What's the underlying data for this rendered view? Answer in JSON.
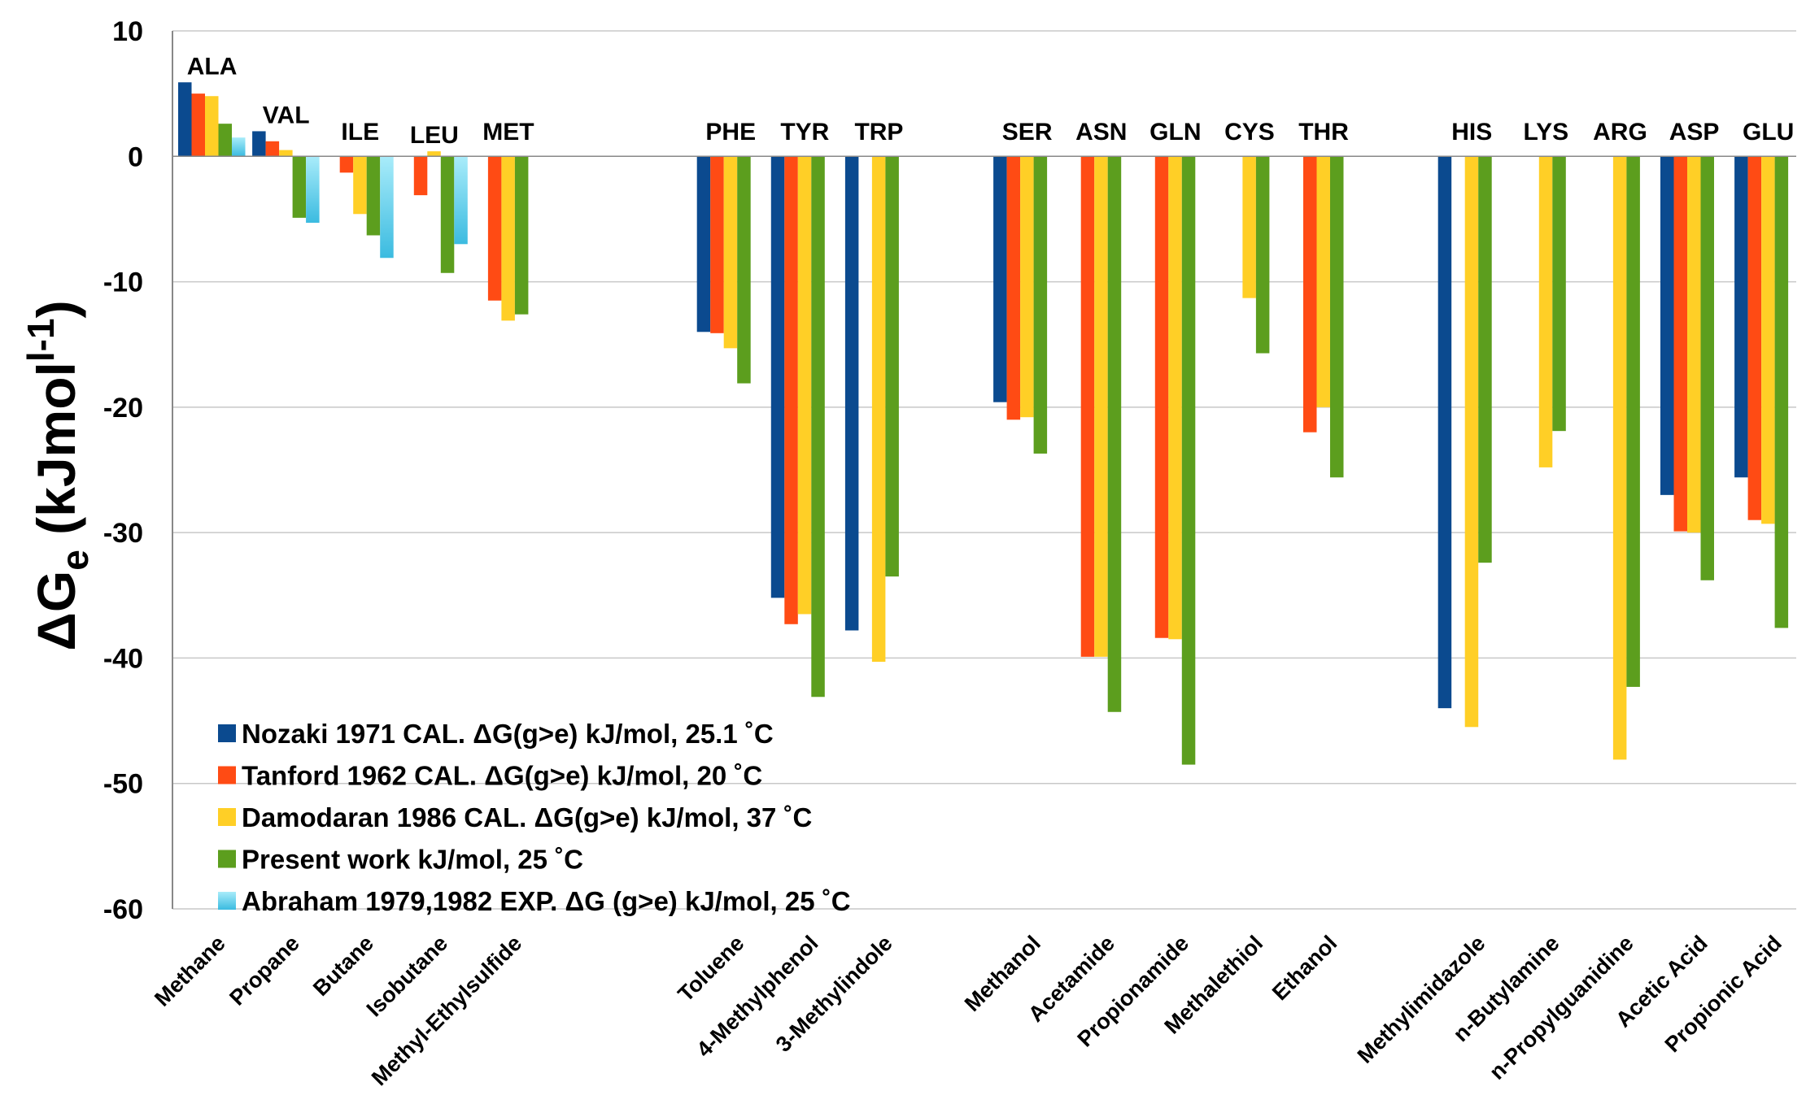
{
  "chart_data": {
    "type": "bar",
    "title": "",
    "xlabel": "",
    "ylabel": {
      "main": "ΔG",
      "subscript": "e",
      "unit_open": " (kJmol",
      "superscript": "l-1",
      "unit_close": ")"
    },
    "ylim": [
      -60,
      10
    ],
    "yticks": [
      10,
      0,
      -10,
      -20,
      -30,
      -40,
      -50,
      -60
    ],
    "grid": true,
    "legend_position": "bottom-left",
    "categories": [
      "Methane",
      "Propane",
      "Butane",
      "Isobutane",
      "Methyl-Ethylsulfide",
      "",
      "",
      "Toluene",
      "4-Methylphenol",
      "3-Methylindole",
      "",
      "Methanol",
      "Acetamide",
      "Propionamide",
      "Methalethiol",
      "Ethanol",
      "",
      "Methylimidazole",
      "n-Butylamine",
      "n-Propylguanidine",
      "Acetic Acid",
      "Propionic Acid"
    ],
    "amino_acids": [
      "ALA",
      "VAL",
      "ILE",
      "LEU",
      "MET",
      "",
      "",
      "PHE",
      "TYR",
      "TRP",
      "",
      "SER",
      "ASN",
      "GLN",
      "CYS",
      "THR",
      "",
      "HIS",
      "LYS",
      "ARG",
      "ASP",
      "GLU"
    ],
    "series": [
      {
        "name": "Nozaki 1971 CAL. ΔG(g>e) kJ/mol, 25.1 ˚C",
        "color": "#0b4a8f",
        "values": [
          5.9,
          2.0,
          null,
          null,
          null,
          null,
          null,
          -14.0,
          -35.2,
          -37.8,
          null,
          -19.6,
          null,
          null,
          null,
          null,
          null,
          -44.0,
          null,
          null,
          -27.0,
          -25.6
        ]
      },
      {
        "name": "Tanford 1962 CAL. ΔG(g>e) kJ/mol, 20 ˚C",
        "color": "#ff4b14",
        "values": [
          5.0,
          1.2,
          -1.3,
          -3.1,
          -11.5,
          null,
          null,
          -14.1,
          -37.3,
          null,
          null,
          -21.0,
          -39.9,
          -38.4,
          null,
          -22.0,
          null,
          null,
          null,
          null,
          -29.9,
          -29.0
        ]
      },
      {
        "name": "Damodaran 1986 CAL. ΔG(g>e) kJ/mol, 37 ˚C",
        "color": "#ffcf26",
        "values": [
          4.8,
          0.5,
          -4.6,
          0.4,
          -13.1,
          null,
          null,
          -15.3,
          -36.5,
          -40.3,
          null,
          -20.8,
          -39.9,
          -38.5,
          -11.3,
          -20.0,
          null,
          -45.5,
          -24.8,
          -48.1,
          -30.0,
          -29.3
        ]
      },
      {
        "name": "Present work kJ/mol, 25 ˚C",
        "color": "#5c9e1e",
        "values": [
          2.6,
          -4.9,
          -6.3,
          -9.3,
          -12.6,
          null,
          null,
          -18.1,
          -43.1,
          -33.5,
          null,
          -23.7,
          -44.3,
          -48.5,
          -15.7,
          -25.6,
          null,
          -32.4,
          -21.9,
          -42.3,
          -33.8,
          -37.6
        ]
      },
      {
        "name": "Abraham 1979,1982 EXP. ΔG (g>e) kJ/mol, 25 ˚C",
        "color": "#5bcfe8",
        "values": [
          1.5,
          -5.3,
          -8.1,
          -7.0,
          null,
          null,
          null,
          null,
          null,
          null,
          null,
          null,
          null,
          null,
          null,
          null,
          null,
          null,
          null,
          null,
          null,
          null
        ]
      }
    ]
  }
}
